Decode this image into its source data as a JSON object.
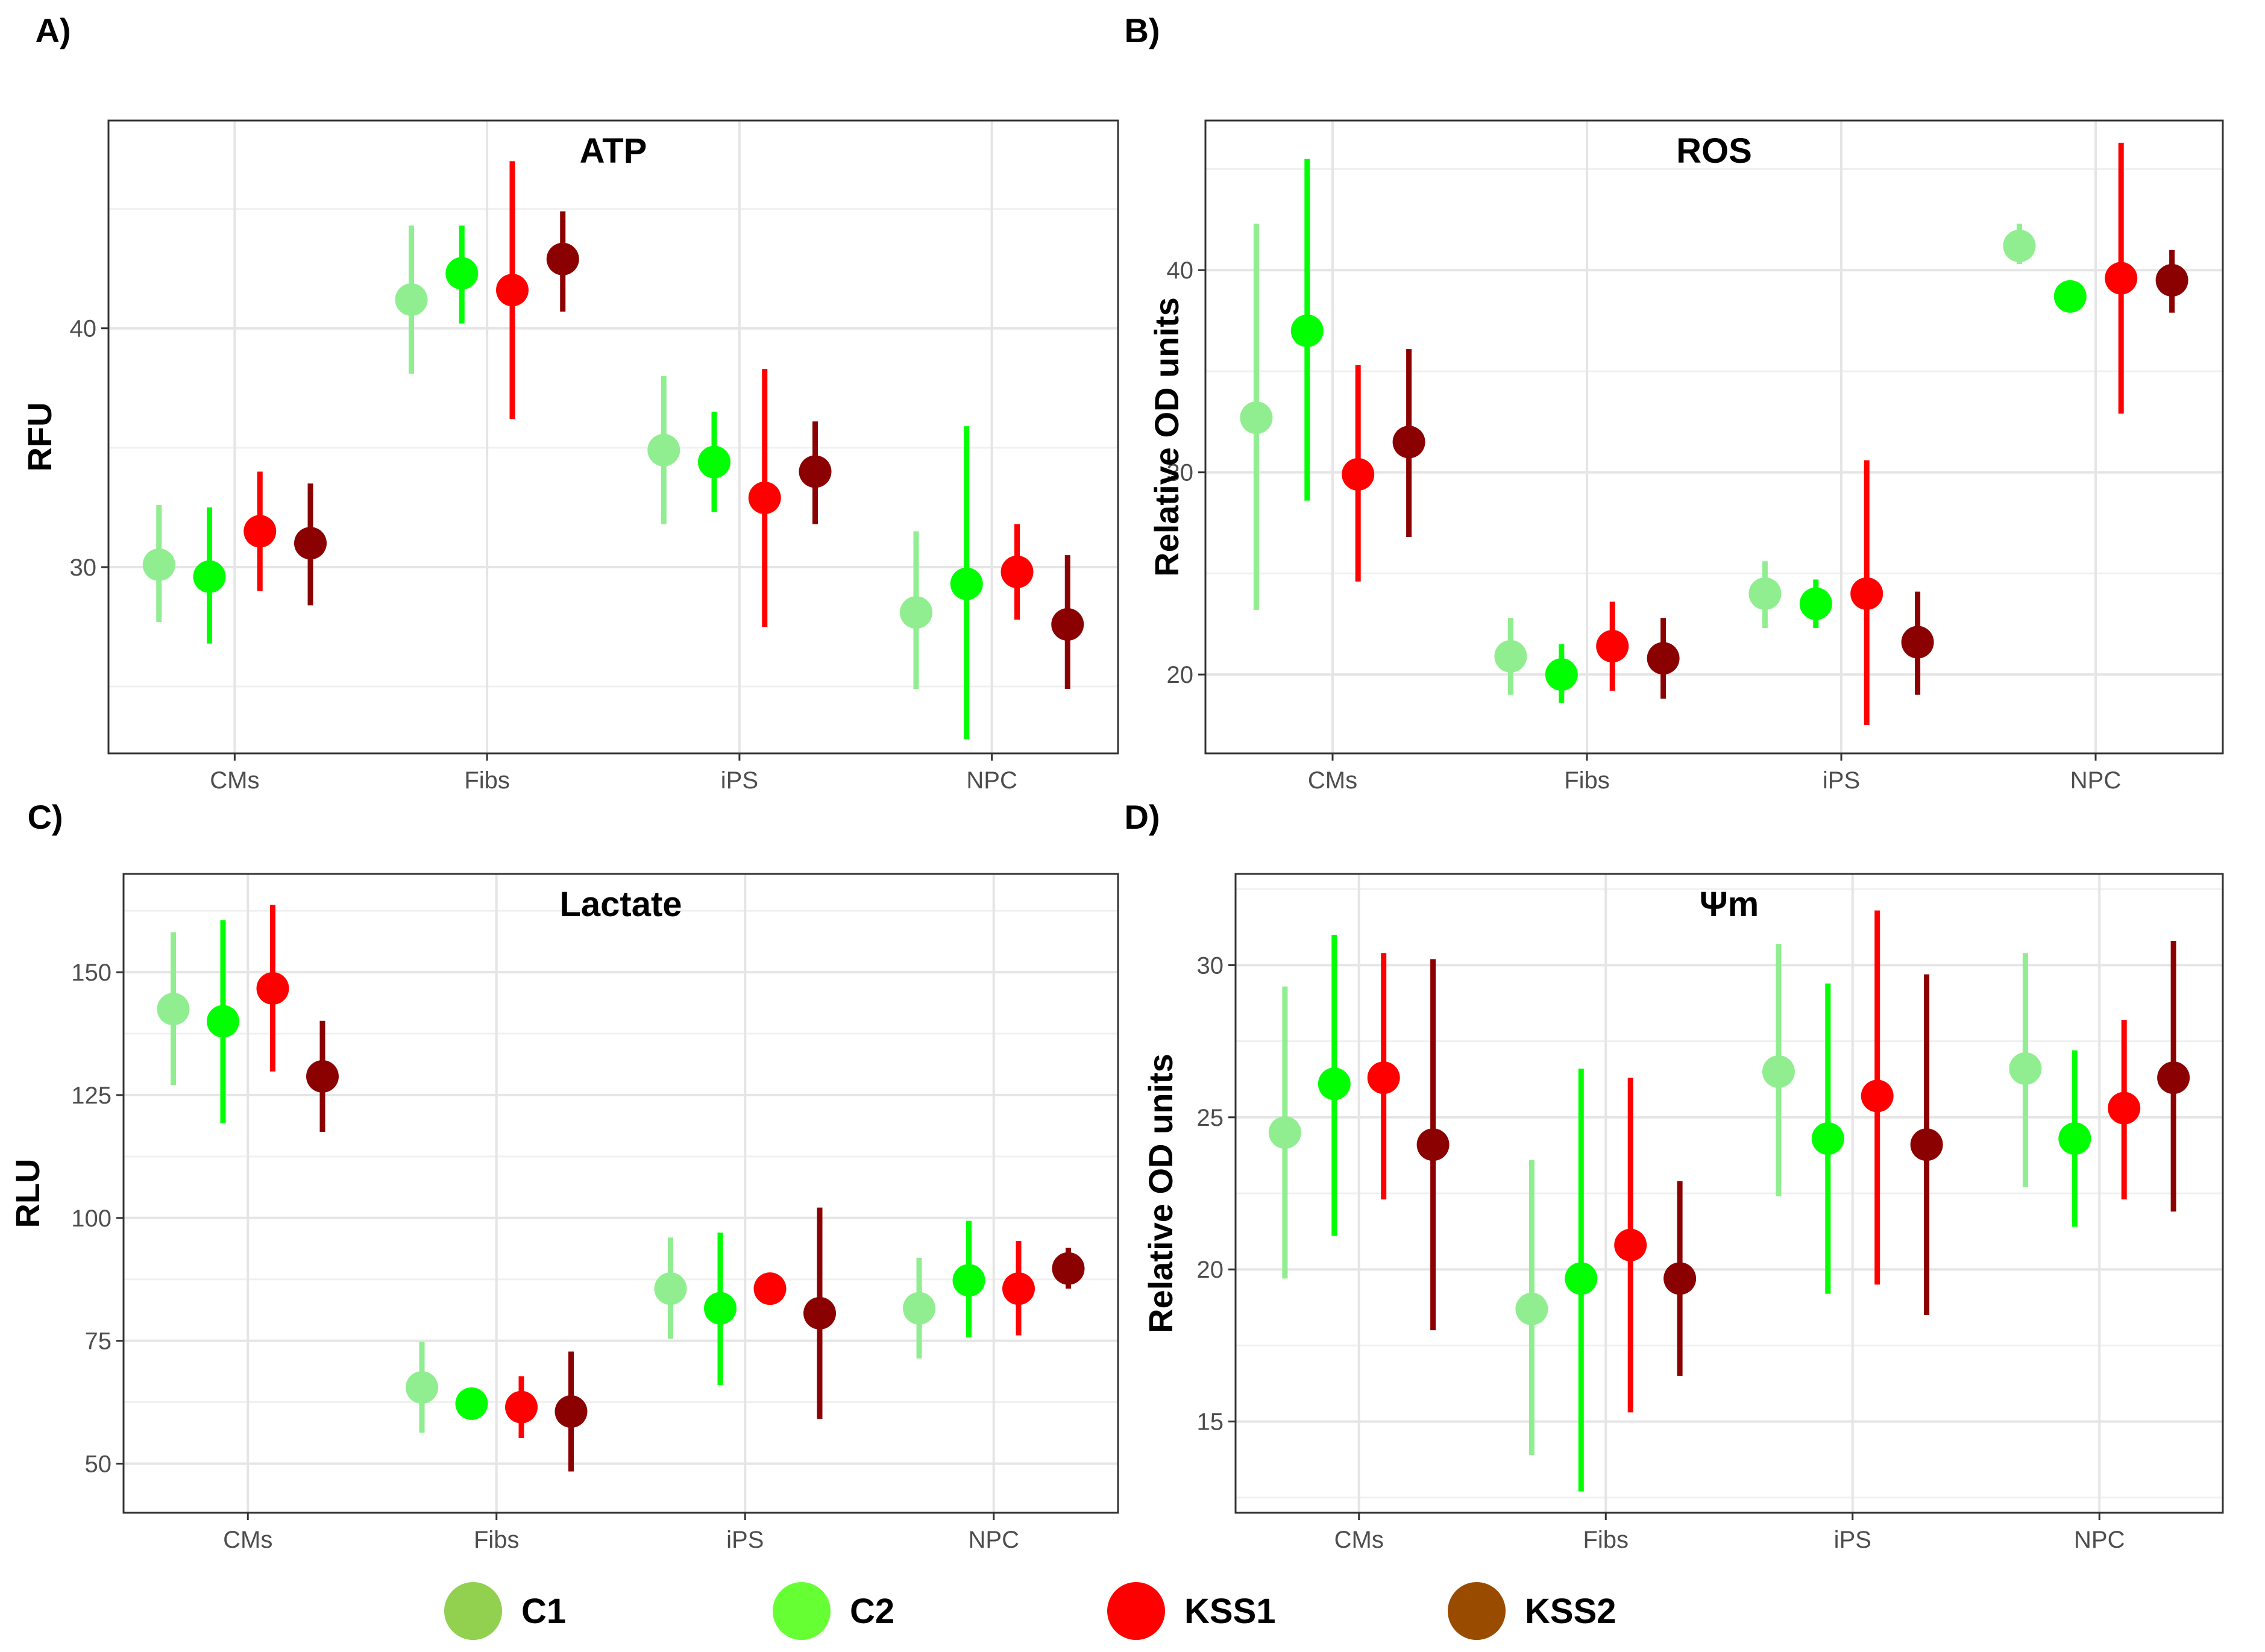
{
  "legend": {
    "items": [
      {
        "label": "C1",
        "color": "#92d050"
      },
      {
        "label": "C2",
        "color": "#66ff33"
      },
      {
        "label": "KSS1",
        "color": "#ff0000"
      },
      {
        "label": "KSS2",
        "color": "#994c00"
      }
    ]
  },
  "chart_data": [
    {
      "panel": "A)",
      "type": "scatter",
      "title": "ATP",
      "ylabel": "RFU",
      "xlabel": "",
      "categories": [
        "CMs",
        "Fibs",
        "iPS",
        "NPC"
      ],
      "ylim": [
        22.2,
        48.7
      ],
      "yticks": [
        30,
        40
      ],
      "grid": true,
      "series": [
        {
          "name": "C1",
          "color": "#90ee90",
          "values": [
            30.1,
            41.2,
            34.9,
            28.1
          ],
          "lower": [
            27.7,
            38.1,
            31.8,
            24.9
          ],
          "upper": [
            32.6,
            44.3,
            38.0,
            31.5
          ]
        },
        {
          "name": "C2",
          "color": "#00ff00",
          "values": [
            29.6,
            42.3,
            34.4,
            29.3
          ],
          "lower": [
            26.8,
            40.2,
            32.3,
            22.8
          ],
          "upper": [
            32.5,
            44.3,
            36.5,
            35.9
          ]
        },
        {
          "name": "KSS1",
          "color": "#ff0000",
          "values": [
            31.5,
            41.6,
            32.9,
            29.8
          ],
          "lower": [
            29.0,
            36.2,
            27.5,
            27.8
          ],
          "upper": [
            34.0,
            47.0,
            38.3,
            31.8
          ]
        },
        {
          "name": "KSS2",
          "color": "#8b0000",
          "values": [
            31.0,
            42.9,
            34.0,
            27.6
          ],
          "lower": [
            28.4,
            40.7,
            31.8,
            24.9
          ],
          "upper": [
            33.5,
            44.9,
            36.1,
            30.5
          ]
        }
      ]
    },
    {
      "panel": "B)",
      "type": "scatter",
      "title": "ROS",
      "ylabel": "Relative OD units",
      "xlabel": "",
      "categories": [
        "CMs",
        "Fibs",
        "iPS",
        "NPC"
      ],
      "ylim": [
        16.1,
        47.4
      ],
      "yticks": [
        20,
        30,
        40
      ],
      "grid": true,
      "series": [
        {
          "name": "C1",
          "color": "#90ee90",
          "values": [
            32.7,
            20.9,
            24.0,
            41.2
          ],
          "lower": [
            23.2,
            19.0,
            22.3,
            40.3
          ],
          "upper": [
            42.3,
            22.8,
            25.6,
            42.3
          ]
        },
        {
          "name": "C2",
          "color": "#00ff00",
          "values": [
            37.0,
            20.0,
            23.5,
            38.7
          ],
          "lower": [
            28.6,
            18.6,
            22.3,
            38.7
          ],
          "upper": [
            45.5,
            21.5,
            24.7,
            38.7
          ]
        },
        {
          "name": "KSS1",
          "color": "#ff0000",
          "values": [
            29.9,
            21.4,
            24.0,
            39.6
          ],
          "lower": [
            24.6,
            19.2,
            17.5,
            32.9
          ],
          "upper": [
            35.3,
            23.6,
            30.6,
            46.3
          ]
        },
        {
          "name": "KSS2",
          "color": "#8b0000",
          "values": [
            31.5,
            20.8,
            21.6,
            39.5
          ],
          "lower": [
            26.8,
            18.8,
            19.0,
            37.9
          ],
          "upper": [
            36.1,
            22.8,
            24.1,
            41.0
          ]
        }
      ]
    },
    {
      "panel": "C)",
      "type": "scatter",
      "title": "Lactate",
      "ylabel": "RLU",
      "xlabel": "",
      "categories": [
        "CMs",
        "Fibs",
        "iPS",
        "NPC"
      ],
      "ylim": [
        40,
        170
      ],
      "yticks": [
        50,
        75,
        100,
        125,
        150
      ],
      "grid": true,
      "series": [
        {
          "name": "C1",
          "color": "#90ee90",
          "values": [
            142.5,
            65.5,
            85.6,
            81.6
          ],
          "lower": [
            127.0,
            56.3,
            75.4,
            71.4
          ],
          "upper": [
            158.1,
            74.8,
            96.0,
            91.9
          ]
        },
        {
          "name": "C2",
          "color": "#00ff00",
          "values": [
            140.0,
            62.2,
            81.6,
            87.3
          ],
          "lower": [
            119.3,
            62.2,
            66.0,
            75.7
          ],
          "upper": [
            160.6,
            62.2,
            97.0,
            99.4
          ]
        },
        {
          "name": "KSS1",
          "color": "#ff0000",
          "values": [
            146.7,
            61.5,
            85.6,
            85.6
          ],
          "lower": [
            129.8,
            55.2,
            85.6,
            76.1
          ],
          "upper": [
            163.7,
            67.8,
            85.6,
            95.3
          ]
        },
        {
          "name": "KSS2",
          "color": "#8b0000",
          "values": [
            128.8,
            60.6,
            80.6,
            89.7
          ],
          "lower": [
            117.5,
            48.4,
            59.1,
            85.6
          ],
          "upper": [
            140.1,
            72.8,
            102.1,
            93.9
          ]
        }
      ]
    },
    {
      "panel": "D)",
      "type": "scatter",
      "title": "Ψm",
      "ylabel": "Relative OD units",
      "xlabel": "",
      "categories": [
        "CMs",
        "Fibs",
        "iPS",
        "NPC"
      ],
      "ylim": [
        12.0,
        33.0
      ],
      "yticks": [
        15,
        20,
        25,
        30
      ],
      "grid": true,
      "series": [
        {
          "name": "C1",
          "color": "#90ee90",
          "values": [
            24.5,
            18.7,
            26.5,
            26.6
          ],
          "lower": [
            19.7,
            13.9,
            22.4,
            22.7
          ],
          "upper": [
            29.3,
            23.6,
            30.7,
            30.4
          ]
        },
        {
          "name": "C2",
          "color": "#00ff00",
          "values": [
            26.1,
            19.7,
            24.3,
            24.3
          ],
          "lower": [
            21.1,
            12.7,
            19.2,
            21.4
          ],
          "upper": [
            31.0,
            26.6,
            29.4,
            27.2
          ]
        },
        {
          "name": "KSS1",
          "color": "#ff0000",
          "values": [
            26.3,
            20.8,
            25.7,
            25.3
          ],
          "lower": [
            22.3,
            15.3,
            19.5,
            22.3
          ],
          "upper": [
            30.4,
            26.3,
            31.8,
            28.2
          ]
        },
        {
          "name": "KSS2",
          "color": "#8b0000",
          "values": [
            24.1,
            19.7,
            24.1,
            26.3
          ],
          "lower": [
            18.0,
            16.5,
            18.5,
            21.9
          ],
          "upper": [
            30.2,
            22.9,
            29.7,
            30.8
          ]
        }
      ]
    }
  ]
}
